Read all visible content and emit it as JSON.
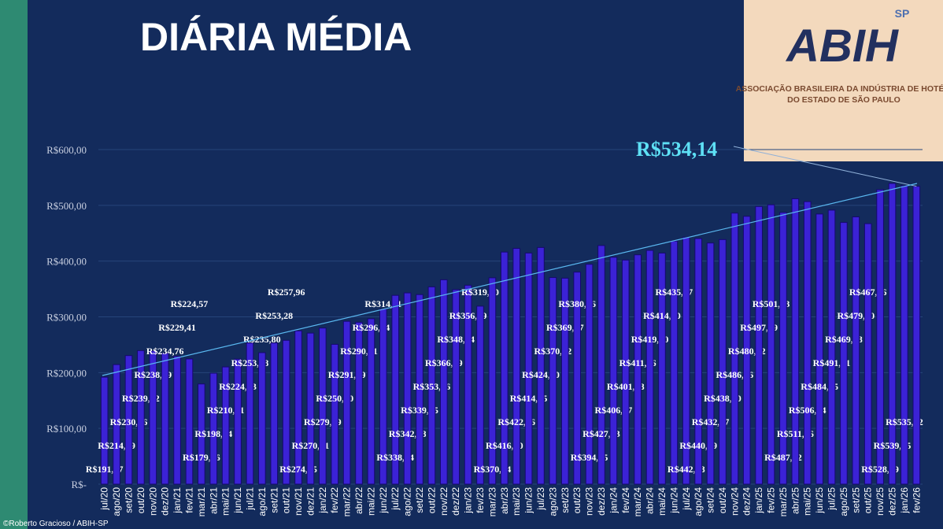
{
  "title": "DIÁRIA MÉDIA",
  "logo": {
    "mark": "ABIH",
    "region": "SP",
    "line1": "ASSOCIAÇÃO BRASILEIRA DA INDÚSTRIA DE HOTÉIS",
    "line2": "DO ESTADO DE SÃO PAULO"
  },
  "credit": "©Roberto Gracioso / ABIH-SP",
  "chart_data": {
    "type": "bar",
    "color": "#3b22d6",
    "grid": true,
    "ylim": [
      0,
      630
    ],
    "yticks": [
      {
        "value": 0,
        "label": "R$-"
      },
      {
        "value": 100,
        "label": "R$100,00"
      },
      {
        "value": 200,
        "label": "R$200,00"
      },
      {
        "value": 300,
        "label": "R$300,00"
      },
      {
        "value": 400,
        "label": "R$400,00"
      },
      {
        "value": 500,
        "label": "R$500,00"
      },
      {
        "value": 600,
        "label": "R$600,00"
      }
    ],
    "categories": [
      "jul/20",
      "ago/20",
      "set/20",
      "out/20",
      "nov/20",
      "dez/20",
      "jan/21",
      "fev/21",
      "mar/21",
      "abr/21",
      "mai/21",
      "jun/21",
      "jul/21",
      "ago/21",
      "set/21",
      "out/21",
      "nov/21",
      "dez/21",
      "jan/22",
      "fev/22",
      "mar/22",
      "abr/22",
      "mai/22",
      "jun/22",
      "jul/22",
      "ago/22",
      "set/22",
      "out/22",
      "nov/22",
      "dez/22",
      "jan/23",
      "fev/23",
      "mar/23",
      "abr/23",
      "mai/23",
      "jun/23",
      "jul/23",
      "ago/23",
      "set/23",
      "out/23",
      "nov/23",
      "dez/23",
      "jan/24",
      "fev/24",
      "mar/24",
      "abr/24",
      "mai/24",
      "jun/24",
      "jul/24",
      "ago/24",
      "set/24",
      "out/24",
      "nov/24",
      "dez/24",
      "jan/25",
      "fev/25",
      "mar/25",
      "abr/25",
      "mai/25",
      "jun/25",
      "jul/25",
      "ago/25",
      "set/25",
      "out/25",
      "nov/25",
      "dez/25",
      "jan/26",
      "fev/26"
    ],
    "values": [
      191.87,
      214.39,
      230.56,
      239.52,
      238.99,
      234.76,
      229.41,
      224.57,
      179.66,
      198.94,
      210.21,
      224.23,
      253.28,
      235.8,
      253.28,
      257.96,
      274.95,
      270.91,
      279.99,
      250.7,
      291.99,
      290.31,
      296.64,
      314.11,
      338.54,
      342.98,
      339.95,
      353.76,
      366.49,
      348.74,
      356.69,
      319.2,
      370.04,
      416.2,
      422.76,
      414.45,
      424.4,
      370.52,
      369.37,
      380.26,
      394.25,
      427.93,
      406.87,
      401.88,
      411.26,
      419.2,
      414.4,
      435.87,
      442.78,
      440.49,
      432.47,
      438.6,
      486.06,
      480.32,
      497.89,
      501.03,
      487.22,
      511.76,
      506.64,
      484.45,
      491.41,
      469.28,
      479.3,
      467.16,
      528.09,
      539.25,
      535.12,
      534.14
    ],
    "value_labels": [
      "R$191,87",
      "R$214,39",
      "R$230,56",
      "R$239,52",
      "R$238,99",
      "R$234,76",
      "R$229,41",
      "R$224,57",
      "R$179,66",
      "R$198,94",
      "R$210,21",
      "R$224,23",
      "R$253,28",
      "R$235,80",
      "R$253,28",
      "R$257,96",
      "R$274,95",
      "R$270,91",
      "R$279,99",
      "R$250,70",
      "R$291,99",
      "R$290,31",
      "R$296,64",
      "R$314,11",
      "R$338,54",
      "R$342,98",
      "R$339,95",
      "R$353,76",
      "R$366,49",
      "R$348,74",
      "R$356,69",
      "R$319,20",
      "R$370,04",
      "R$416,20",
      "R$422,76",
      "R$414,45",
      "R$424,40",
      "R$370,52",
      "R$369,37",
      "R$380,26",
      "R$394,25",
      "R$427,93",
      "R$406,87",
      "R$401,88",
      "R$411,26",
      "R$419,20",
      "R$414,40",
      "R$435,87",
      "R$442,78",
      "R$440,49",
      "R$432,47",
      "R$438,60",
      "R$486,06",
      "R$480,32",
      "R$497,89",
      "R$501,03",
      "R$487,22",
      "R$511,76",
      "R$506,64",
      "R$484,45",
      "R$491,41",
      "R$469,28",
      "R$479,30",
      "R$467,16",
      "R$528,09",
      "R$539,25",
      "R$535,12",
      "R$534,14"
    ]
  }
}
